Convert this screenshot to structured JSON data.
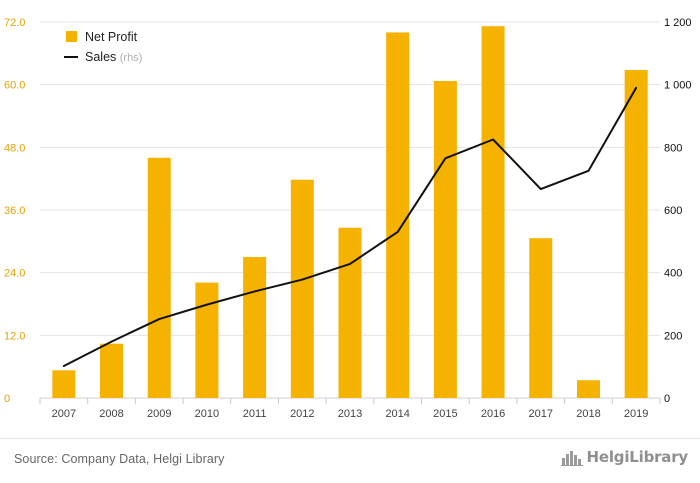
{
  "chart_data": {
    "type": "bar",
    "categories": [
      "2007",
      "2008",
      "2009",
      "2010",
      "2011",
      "2012",
      "2013",
      "2014",
      "2015",
      "2016",
      "2017",
      "2018",
      "2019"
    ],
    "series": [
      {
        "name": "Net Profit",
        "type": "bar",
        "axis": "left",
        "values": [
          5.3,
          10.4,
          46.0,
          22.1,
          27.0,
          41.8,
          32.6,
          70.0,
          60.7,
          71.2,
          30.6,
          3.4,
          62.8
        ]
      },
      {
        "name": "Sales",
        "name_suffix": "(rhs)",
        "type": "line",
        "axis": "right",
        "values": [
          102,
          180,
          252,
          298,
          340,
          378,
          428,
          530,
          765,
          825,
          667,
          725,
          990
        ]
      }
    ],
    "y_left": {
      "lim": [
        0,
        72
      ],
      "ticks": [
        "0",
        "12.0",
        "24.0",
        "36.0",
        "48.0",
        "60.0",
        "72.0"
      ],
      "tick_values": [
        0,
        12,
        24,
        36,
        48,
        60,
        72
      ]
    },
    "y_right": {
      "lim": [
        0,
        1200
      ],
      "ticks": [
        "0",
        "200",
        "400",
        "600",
        "800",
        "1 000",
        "1 200"
      ],
      "tick_values": [
        0,
        200,
        400,
        600,
        800,
        1000,
        1200
      ]
    },
    "grid": true,
    "legend_position": "top-left",
    "colors": {
      "bar": "#f6b200",
      "line": "#111111",
      "grid": "#e5e5e5",
      "left_axis_text": "#e5a300",
      "right_axis_text": "#111111",
      "category_text": "#444444"
    }
  },
  "footer": {
    "source": "Source: Company Data, Helgi Library",
    "brand": "HelgiLibrary"
  },
  "icons": {
    "legend_bar": "yellow-square",
    "legend_line": "black-line",
    "brand": "building-icon"
  }
}
